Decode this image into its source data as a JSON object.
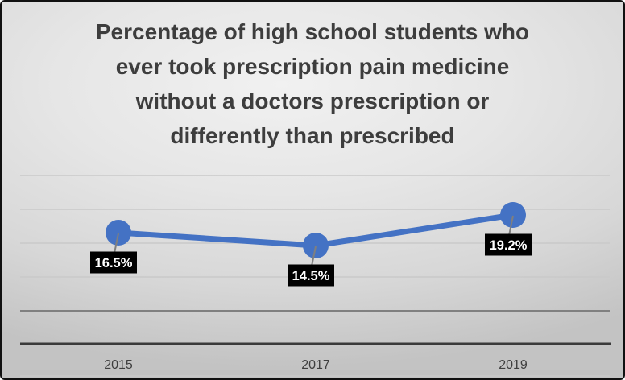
{
  "slide": {
    "title_lines": [
      "Percentage of high school students who",
      "ever took prescription pain medicine",
      "without a doctors prescription or",
      "differently than prescribed"
    ]
  },
  "chart_data": {
    "type": "line",
    "title": "Percentage of high school students who ever took prescription pain medicine without a doctors prescription or differently than prescribed",
    "categories": [
      "2015",
      "2017",
      "2019"
    ],
    "values": [
      16.5,
      14.5,
      19.2
    ],
    "data_labels": [
      "16.5%",
      "14.5%",
      "19.2%"
    ],
    "xlabel": "",
    "ylabel": "",
    "y_axis_labels_visible": false,
    "grid": true,
    "legend": false,
    "marker": "circle"
  },
  "colors": {
    "line": "#4472C4",
    "marker": "#4472C4",
    "leader": "#7f7f7f",
    "label_bg": "#000000",
    "label_text": "#ffffff",
    "grid_light": "#c9c9c9",
    "grid_medium": "#808080",
    "axis_line": "#3a3a3a",
    "tick_text": "#3f3f3f",
    "title_text": "#3d3d3d"
  }
}
